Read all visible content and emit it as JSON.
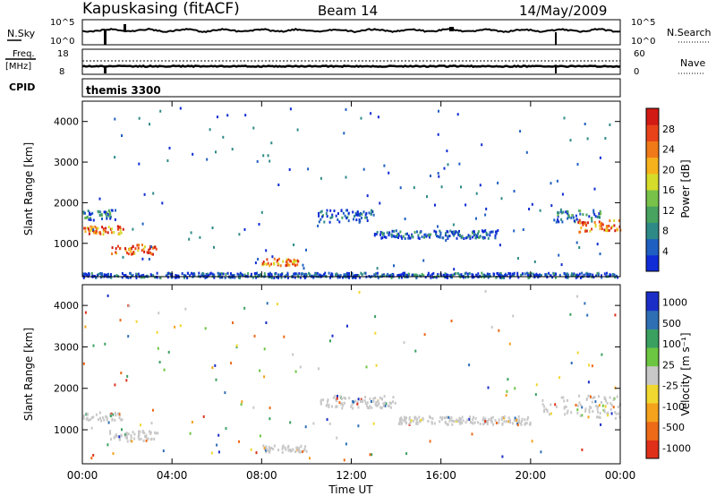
{
  "header": {
    "station": "Kapuskasing (fitACF)",
    "beam": "Beam 14",
    "date": "14/May/2009"
  },
  "left_labels": {
    "nsky": "N.Sky",
    "nsky_ticks": [
      "10^5",
      "10^0"
    ],
    "freq_top": "Freq.",
    "freq_unit": "[MHz]",
    "freq_ticks": [
      "18",
      "8"
    ],
    "cpid": "CPID"
  },
  "right_labels": {
    "nsearch": "N.Search",
    "nsearch_ticks": [
      "10^5",
      "10^0"
    ],
    "nave": "Nave",
    "nave_ticks": [
      "60",
      "0"
    ]
  },
  "cpid_text": "themis 3300",
  "chart_data": [
    {
      "type": "heatmap",
      "panel": "power",
      "xlabel": "Time UT",
      "ylabel": "Slant Range [km]",
      "xlim": [
        0,
        24
      ],
      "ylim": [
        180,
        4500
      ],
      "ytick_labels": [
        "1000",
        "2000",
        "3000",
        "4000"
      ],
      "colorbar": {
        "label": "Power [dB]",
        "tick_labels": [
          "4",
          "8",
          "12",
          "16",
          "20",
          "24",
          "28"
        ],
        "colors": [
          "#0f2cd6",
          "#1f5fc2",
          "#2e8a87",
          "#47a35f",
          "#78c24a",
          "#d6dc2a",
          "#f5b21c",
          "#f07a17",
          "#e8421a",
          "#d11a14"
        ]
      },
      "bands": [
        {
          "t0": 0.0,
          "t1": 1.8,
          "r0": 1250,
          "r1": 1450,
          "level": 0.75
        },
        {
          "t0": 0.0,
          "t1": 1.5,
          "r0": 1600,
          "r1": 1850,
          "level": 0.2
        },
        {
          "t0": 1.2,
          "t1": 3.4,
          "r0": 750,
          "r1": 1000,
          "level": 0.8
        },
        {
          "t0": 8.0,
          "t1": 9.6,
          "r0": 480,
          "r1": 650,
          "level": 0.75
        },
        {
          "t0": 10.5,
          "t1": 13.0,
          "r0": 1550,
          "r1": 1850,
          "level": 0.1
        },
        {
          "t0": 13.0,
          "t1": 18.5,
          "r0": 1150,
          "r1": 1350,
          "level": 0.1
        },
        {
          "t0": 21.0,
          "t1": 23.2,
          "r0": 1550,
          "r1": 1850,
          "level": 0.2
        },
        {
          "t0": 22.0,
          "t1": 24.0,
          "r0": 1300,
          "r1": 1600,
          "level": 0.8
        },
        {
          "t0": 0.0,
          "t1": 24.0,
          "r0": 180,
          "r1": 300,
          "level": 0.1
        }
      ]
    },
    {
      "type": "heatmap",
      "panel": "velocity",
      "xlabel": "Time UT",
      "ylabel": "Slant Range [km]",
      "xlim": [
        0,
        24
      ],
      "ylim": [
        180,
        4500
      ],
      "xtick_labels": [
        "00:00",
        "04:00",
        "08:00",
        "12:00",
        "16:00",
        "20:00",
        "00:00"
      ],
      "ytick_labels": [
        "1000",
        "2000",
        "3000",
        "4000"
      ],
      "colorbar": {
        "label": "Velocity [m s⁻¹]",
        "tick_labels": [
          "1000",
          "500",
          "100",
          "25",
          "-25",
          "-100",
          "-500",
          "-1000"
        ],
        "colors": [
          "#1a2ec7",
          "#2e6fb4",
          "#3aa060",
          "#6cc641",
          "#c8c8c8",
          "#f0d830",
          "#f5a21c",
          "#ee6a17",
          "#e0301a"
        ]
      },
      "bands": [
        {
          "t0": 0.0,
          "t1": 1.8,
          "r0": 1250,
          "r1": 1450,
          "level": 0.5
        },
        {
          "t0": 1.2,
          "t1": 3.4,
          "r0": 750,
          "r1": 1000,
          "level": 0.5
        },
        {
          "t0": 8.0,
          "t1": 10.0,
          "r0": 480,
          "r1": 650,
          "level": 0.5
        },
        {
          "t0": 10.5,
          "t1": 14.0,
          "r0": 1550,
          "r1": 1850,
          "level": 0.5
        },
        {
          "t0": 14.0,
          "t1": 20.0,
          "r0": 1150,
          "r1": 1350,
          "level": 0.5
        },
        {
          "t0": 20.5,
          "t1": 24.0,
          "r0": 1300,
          "r1": 1850,
          "level": 0.5
        }
      ]
    }
  ]
}
